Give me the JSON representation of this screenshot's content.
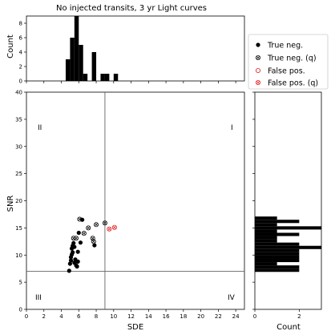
{
  "chart_data": {
    "type": "scatter",
    "title": "No injected transits, 3 yr Light curves",
    "xlabel": "SDE",
    "ylabel": "SNR",
    "xlim": [
      0,
      25
    ],
    "ylim": [
      0,
      40
    ],
    "xticks": [
      "0",
      "2",
      "4",
      "6",
      "8",
      "10",
      "12",
      "14",
      "16",
      "18",
      "20",
      "22",
      "24"
    ],
    "yticks": [
      "0",
      "5",
      "10",
      "15",
      "20",
      "25",
      "30",
      "35",
      "40"
    ],
    "threshold_lines": {
      "sde": 9,
      "snr": 7
    },
    "quadrants": {
      "top_left": "II",
      "top_right": "I",
      "bottom_left": "III",
      "bottom_right": "IV"
    },
    "legend": {
      "placement": "right",
      "entries": [
        "True neg.",
        "True neg. (q)",
        "False pos.",
        "False pos. (q)"
      ]
    },
    "series": [
      {
        "name": "True neg.",
        "color": "#000000",
        "marker": "filled-circle",
        "points": [
          [
            4.9,
            7.1
          ],
          [
            5.0,
            8.4
          ],
          [
            5.1,
            9.0
          ],
          [
            5.1,
            9.6
          ],
          [
            5.2,
            10.1
          ],
          [
            5.3,
            10.5
          ],
          [
            5.2,
            11.2
          ],
          [
            5.3,
            11.7
          ],
          [
            5.4,
            12.2
          ],
          [
            5.5,
            11.5
          ],
          [
            5.5,
            8.6
          ],
          [
            5.6,
            9.2
          ],
          [
            5.7,
            8.1
          ],
          [
            5.8,
            7.9
          ],
          [
            5.9,
            8.8
          ],
          [
            5.9,
            10.6
          ],
          [
            6.2,
            12.3
          ],
          [
            6.0,
            14.1
          ],
          [
            6.4,
            16.5
          ],
          [
            7.8,
            11.8
          ]
        ]
      },
      {
        "name": "True neg. (q)",
        "color": "#000000",
        "marker": "circle-x",
        "points": [
          [
            5.4,
            13.1
          ],
          [
            5.7,
            13.1
          ],
          [
            6.1,
            16.6
          ],
          [
            6.6,
            14.0
          ],
          [
            7.1,
            15.0
          ],
          [
            7.6,
            13.1
          ],
          [
            7.7,
            12.5
          ],
          [
            8.0,
            15.6
          ],
          [
            9.0,
            15.9
          ]
        ]
      },
      {
        "name": "False pos.",
        "color": "#e41a1c",
        "marker": "open-circle",
        "points": []
      },
      {
        "name": "False pos. (q)",
        "color": "#e41a1c",
        "marker": "circle-x",
        "points": [
          [
            9.5,
            14.8
          ],
          [
            10.1,
            15.1
          ]
        ]
      }
    ],
    "top_histogram": {
      "ylabel": "Count",
      "ylim": [
        0,
        9
      ],
      "yticks": [
        "0",
        "2",
        "4",
        "6",
        "8"
      ],
      "bin_width": 0.5,
      "bins": [
        [
          4.5,
          3
        ],
        [
          5.0,
          6
        ],
        [
          5.5,
          9
        ],
        [
          6.0,
          5
        ],
        [
          6.5,
          1
        ],
        [
          7.5,
          4
        ],
        [
          8.5,
          1
        ],
        [
          9.0,
          1
        ],
        [
          10.0,
          1
        ]
      ]
    },
    "right_histogram": {
      "xlabel": "Count",
      "xlim": [
        0,
        3
      ],
      "xticks": [
        "0",
        "2"
      ],
      "bin_height": 0.6,
      "bins": [
        [
          6.9,
          2
        ],
        [
          7.5,
          2
        ],
        [
          8.1,
          1
        ],
        [
          8.7,
          2
        ],
        [
          9.3,
          2
        ],
        [
          9.9,
          2
        ],
        [
          10.5,
          2
        ],
        [
          11.1,
          3
        ],
        [
          11.7,
          2
        ],
        [
          12.3,
          1
        ],
        [
          12.9,
          1
        ],
        [
          13.5,
          2
        ],
        [
          14.1,
          1
        ],
        [
          14.7,
          3
        ],
        [
          15.3,
          1
        ],
        [
          15.9,
          2
        ],
        [
          16.5,
          1
        ]
      ]
    }
  }
}
